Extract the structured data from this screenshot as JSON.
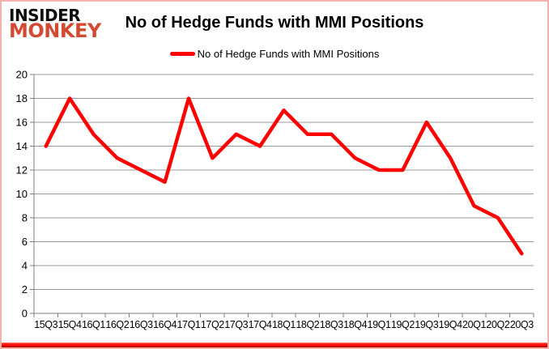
{
  "logo": {
    "line1": "INSIDER",
    "line2": "MONKEY",
    "monkey_color": "#d34a32"
  },
  "title": "No of Hedge Funds with MMI Positions",
  "legend": {
    "label": "No of Hedge Funds with MMI Positions",
    "swatch_color": "#ff0000"
  },
  "chart_data": {
    "type": "line",
    "title": "No of Hedge Funds with MMI Positions",
    "categories": [
      "15Q3",
      "15Q4",
      "16Q1",
      "16Q2",
      "16Q3",
      "16Q4",
      "17Q1",
      "17Q2",
      "17Q3",
      "17Q4",
      "18Q1",
      "18Q2",
      "18Q3",
      "18Q4",
      "19Q1",
      "19Q2",
      "19Q3",
      "19Q4",
      "20Q1",
      "20Q2",
      "20Q3"
    ],
    "series": [
      {
        "name": "No of Hedge Funds with MMI Positions",
        "values": [
          14,
          18,
          15,
          13,
          12,
          11,
          18,
          13,
          15,
          14,
          17,
          15,
          15,
          13,
          12,
          12,
          16,
          13,
          9,
          8,
          5
        ]
      }
    ],
    "ylim": [
      0,
      20
    ],
    "ytick_step": 2,
    "grid": true,
    "legend_position": "top-center",
    "line_color": "#ff0000",
    "background": "#ffffff",
    "gridline_color": "#9a9a9a",
    "axis_color": "#7f7f7f"
  },
  "frame": {
    "border_color": "#f5b2ac",
    "bottom_bar_top_color": "#ff1e12",
    "bottom_bar_bottom_color": "#a40000"
  }
}
